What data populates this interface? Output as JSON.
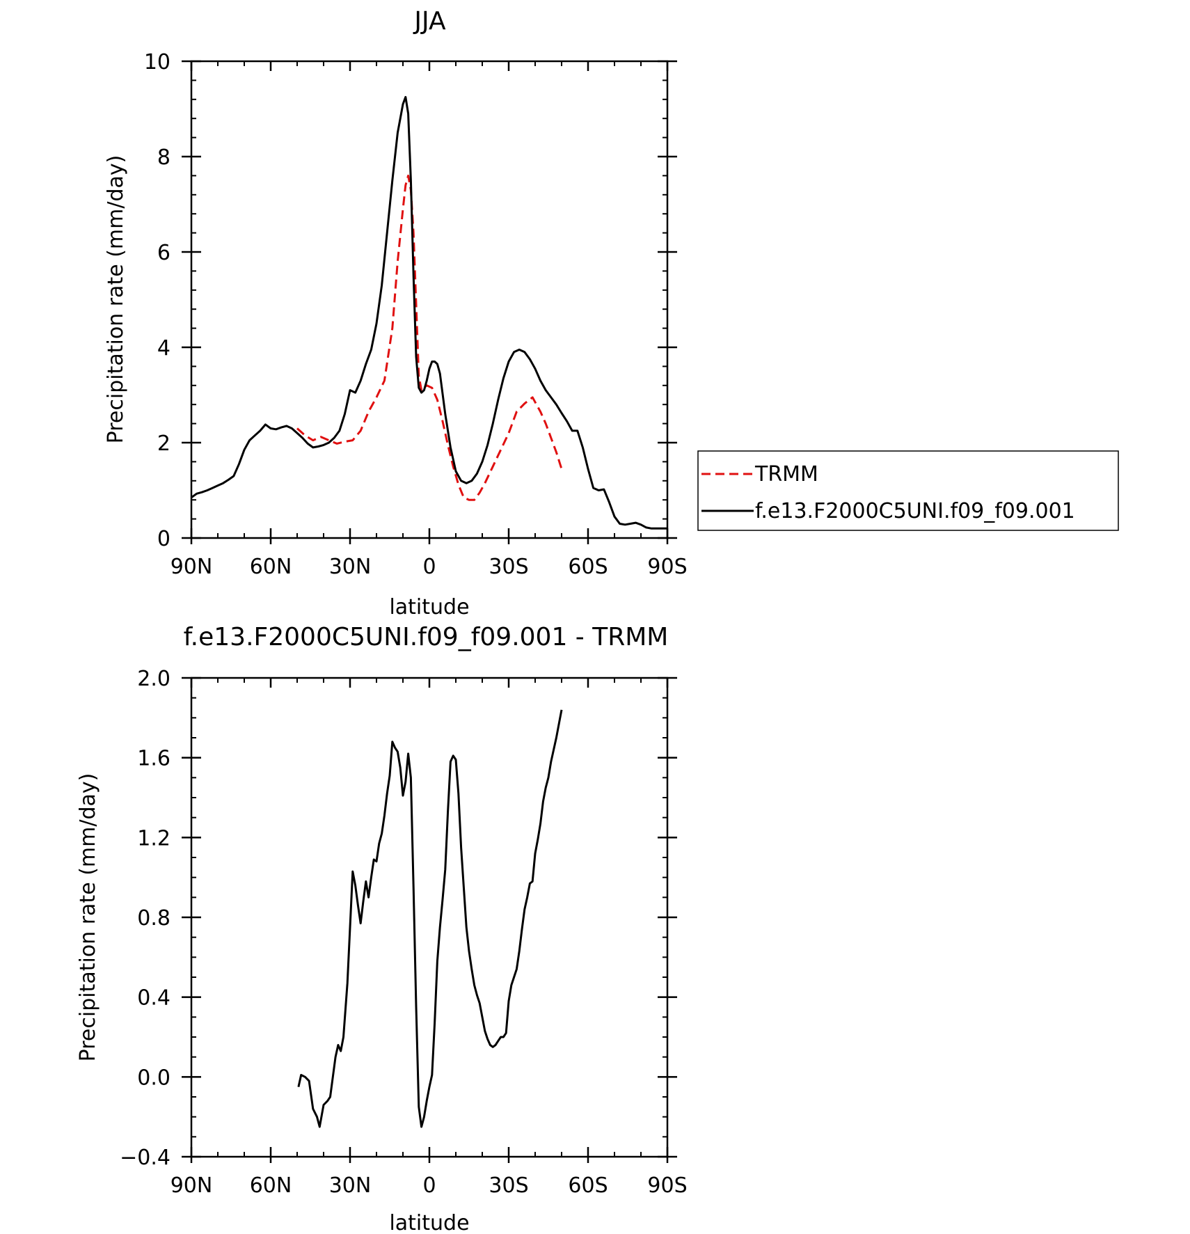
{
  "chart_data": [
    {
      "type": "line",
      "title": "JJA",
      "xlabel": "latitude",
      "ylabel": "Precipitation rate (mm/day)",
      "xlim": [
        -90,
        90
      ],
      "ylim": [
        0,
        10
      ],
      "x_ticks": [
        -90,
        -60,
        -30,
        0,
        30,
        60,
        90
      ],
      "x_tick_labels": [
        "90N",
        "60N",
        "30N",
        "0",
        "30S",
        "60S",
        "90S"
      ],
      "y_ticks": [
        0,
        2,
        4,
        6,
        8,
        10
      ],
      "y_tick_labels": [
        "0",
        "2",
        "4",
        "6",
        "8",
        "10"
      ],
      "legend": "right",
      "series": [
        {
          "name": "TRMM",
          "color": "#e01010",
          "dash": true,
          "x": [
            -50,
            -47,
            -44,
            -41,
            -38,
            -35,
            -32,
            -29,
            -26,
            -23,
            -20,
            -17,
            -14,
            -12,
            -10,
            -9,
            -8,
            -7,
            -6,
            -5,
            -4,
            -3,
            -1,
            1,
            3,
            5,
            7,
            9,
            11,
            13,
            15,
            17,
            19,
            21,
            24,
            27,
            30,
            33,
            36,
            39,
            40,
            42,
            44,
            46,
            48,
            50
          ],
          "y": [
            2.3,
            2.15,
            2.05,
            2.12,
            2.05,
            1.98,
            2.02,
            2.05,
            2.25,
            2.65,
            2.95,
            3.3,
            4.4,
            5.8,
            6.9,
            7.4,
            7.6,
            7.3,
            6.4,
            4.9,
            3.4,
            3.1,
            3.2,
            3.15,
            2.9,
            2.45,
            1.95,
            1.5,
            1.12,
            0.85,
            0.8,
            0.8,
            0.95,
            1.15,
            1.5,
            1.85,
            2.2,
            2.65,
            2.82,
            2.95,
            2.85,
            2.65,
            2.4,
            2.1,
            1.8,
            1.45
          ]
        },
        {
          "name": "f.e13.F2000C5UNI.f09_f09.001",
          "color": "#000000",
          "dash": false,
          "x": [
            -90,
            -88,
            -86,
            -84,
            -82,
            -80,
            -78,
            -76,
            -74,
            -72,
            -70,
            -68,
            -66,
            -64,
            -62,
            -60,
            -58,
            -56,
            -54,
            -52,
            -50,
            -48,
            -46,
            -44,
            -42,
            -40,
            -38,
            -36,
            -34,
            -32,
            -30,
            -28,
            -26,
            -24,
            -22,
            -20,
            -18,
            -16,
            -14,
            -12,
            -10,
            -9,
            -8,
            -7,
            -6,
            -5,
            -4,
            -3,
            -2,
            -1,
            0,
            1,
            2,
            3,
            4,
            6,
            8,
            10,
            12,
            14,
            16,
            18,
            20,
            22,
            24,
            26,
            28,
            30,
            32,
            34,
            36,
            38,
            40,
            42,
            44,
            46,
            48,
            50,
            52,
            54,
            56,
            58,
            60,
            62,
            64,
            66,
            68,
            70,
            72,
            74,
            76,
            78,
            80,
            82,
            84,
            86,
            88,
            90
          ],
          "y": [
            0.85,
            0.93,
            0.96,
            1.0,
            1.05,
            1.1,
            1.15,
            1.22,
            1.3,
            1.55,
            1.85,
            2.05,
            2.15,
            2.25,
            2.38,
            2.3,
            2.28,
            2.32,
            2.35,
            2.3,
            2.2,
            2.1,
            1.98,
            1.9,
            1.92,
            1.95,
            2.0,
            2.1,
            2.25,
            2.6,
            3.1,
            3.05,
            3.3,
            3.65,
            3.95,
            4.5,
            5.3,
            6.4,
            7.5,
            8.5,
            9.1,
            9.25,
            8.9,
            7.5,
            5.5,
            3.8,
            3.15,
            3.05,
            3.1,
            3.3,
            3.55,
            3.7,
            3.7,
            3.65,
            3.45,
            2.6,
            1.9,
            1.4,
            1.2,
            1.15,
            1.2,
            1.35,
            1.6,
            1.95,
            2.4,
            2.9,
            3.35,
            3.7,
            3.9,
            3.95,
            3.9,
            3.75,
            3.55,
            3.3,
            3.1,
            2.95,
            2.8,
            2.62,
            2.45,
            2.25,
            2.25,
            1.9,
            1.45,
            1.05,
            1.0,
            1.02,
            0.75,
            0.45,
            0.3,
            0.28,
            0.3,
            0.32,
            0.28,
            0.22,
            0.2,
            0.2,
            0.2,
            0.2
          ]
        }
      ]
    },
    {
      "type": "line",
      "title": "f.e13.F2000C5UNI.f09_f09.001 - TRMM",
      "xlabel": "latitude",
      "ylabel": "Precipitation rate (mm/day)",
      "xlim": [
        -90,
        90
      ],
      "ylim": [
        -0.4,
        2.0
      ],
      "x_ticks": [
        -90,
        -60,
        -30,
        0,
        30,
        60,
        90
      ],
      "x_tick_labels": [
        "90N",
        "60N",
        "30N",
        "0",
        "30S",
        "60S",
        "90S"
      ],
      "y_ticks": [
        -0.4,
        0.0,
        0.4,
        0.8,
        1.2,
        1.6,
        2.0
      ],
      "y_tick_labels": [
        "−0.4",
        "0.0",
        "0.4",
        "0.8",
        "1.2",
        "1.6",
        "2.0"
      ],
      "series": [
        {
          "color": "#000000",
          "x": [
            -49.5,
            -48.5,
            -47,
            -45.5,
            -44,
            -42.5,
            -41.5,
            -40,
            -38.5,
            -37.5,
            -36.5,
            -35.5,
            -34.5,
            -33.5,
            -32.5,
            -31,
            -30,
            -29,
            -28,
            -27,
            -26,
            -25,
            -24,
            -23,
            -22,
            -21,
            -20,
            -19,
            -18,
            -17,
            -16,
            -15,
            -14,
            -13,
            -12,
            -11,
            -10,
            -9,
            -8,
            -7,
            -6,
            -5,
            -4,
            -3,
            -2,
            -1,
            0,
            1,
            2,
            3,
            4,
            5,
            6,
            7,
            8,
            9,
            10,
            11,
            12,
            13,
            14,
            15,
            16,
            17,
            18,
            19,
            20,
            21,
            22,
            23,
            24,
            25,
            26,
            27,
            28,
            29,
            30,
            31,
            32,
            33,
            34,
            35,
            36,
            37,
            38,
            39,
            40,
            41,
            42,
            43,
            44,
            45,
            46,
            47,
            48,
            49,
            50
          ],
          "y": [
            -0.05,
            0.01,
            0.0,
            -0.02,
            -0.16,
            -0.2,
            -0.25,
            -0.14,
            -0.12,
            -0.1,
            0.0,
            0.1,
            0.16,
            0.13,
            0.2,
            0.47,
            0.75,
            1.03,
            0.96,
            0.86,
            0.77,
            0.88,
            0.98,
            0.9,
            1.0,
            1.09,
            1.08,
            1.17,
            1.22,
            1.31,
            1.42,
            1.51,
            1.68,
            1.65,
            1.63,
            1.55,
            1.41,
            1.48,
            1.62,
            1.5,
            0.95,
            0.35,
            -0.15,
            -0.25,
            -0.2,
            -0.12,
            -0.05,
            0.01,
            0.27,
            0.58,
            0.75,
            0.89,
            1.04,
            1.33,
            1.58,
            1.61,
            1.59,
            1.42,
            1.15,
            0.95,
            0.75,
            0.63,
            0.54,
            0.46,
            0.41,
            0.37,
            0.3,
            0.23,
            0.19,
            0.16,
            0.15,
            0.16,
            0.18,
            0.2,
            0.2,
            0.22,
            0.38,
            0.46,
            0.5,
            0.54,
            0.63,
            0.74,
            0.84,
            0.9,
            0.97,
            0.98,
            1.12,
            1.19,
            1.27,
            1.38,
            1.45,
            1.5,
            1.58,
            1.64,
            1.7,
            1.77,
            1.84
          ]
        }
      ]
    }
  ]
}
